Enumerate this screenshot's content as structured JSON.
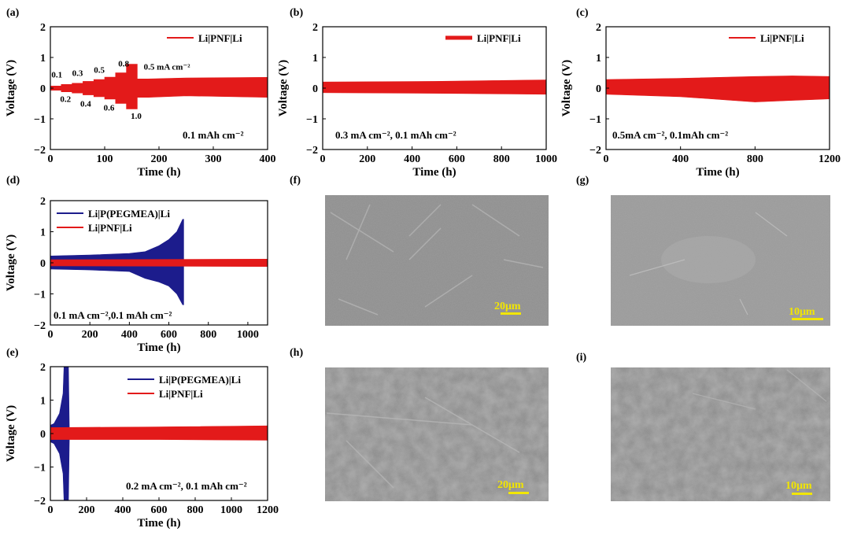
{
  "chart_data": [
    {
      "id": "a",
      "panel_label": "(a)",
      "type": "line",
      "xlabel": "Time (h)",
      "ylabel": "Voltage (V)",
      "xlim": [
        0,
        400
      ],
      "ylim": [
        -2,
        2
      ],
      "xticks": [
        0,
        100,
        200,
        300,
        400
      ],
      "yticks": [
        -2,
        -1,
        0,
        1,
        2
      ],
      "xtick_labels": [
        "0",
        "100",
        "200",
        "300",
        "400"
      ],
      "ytick_labels": [
        "−2",
        "−1",
        "0",
        "1",
        "2"
      ],
      "legend_position": "top-right",
      "series": [
        {
          "name": "Li|PNF|Li",
          "color": "#e31a1a",
          "envelope": {
            "x": [
              0,
              20,
              20,
              40,
              40,
              60,
              60,
              80,
              80,
              100,
              100,
              120,
              120,
              140,
              140,
              160,
              160,
              180,
              180,
              250,
              400
            ],
            "upper": [
              0.07,
              0.07,
              0.12,
              0.12,
              0.16,
              0.16,
              0.22,
              0.22,
              0.28,
              0.28,
              0.36,
              0.36,
              0.5,
              0.5,
              0.78,
              0.78,
              0.3,
              0.3,
              0.3,
              0.33,
              0.35
            ],
            "lower": [
              -0.07,
              -0.07,
              -0.12,
              -0.12,
              -0.16,
              -0.16,
              -0.22,
              -0.22,
              -0.28,
              -0.28,
              -0.36,
              -0.36,
              -0.5,
              -0.5,
              -0.68,
              -0.68,
              -0.3,
              -0.3,
              -0.3,
              -0.25,
              -0.3
            ]
          }
        }
      ],
      "annotations": [
        {
          "text": "0.1",
          "x": 2,
          "y": 0.35
        },
        {
          "text": "0.3",
          "x": 40,
          "y": 0.4
        },
        {
          "text": "0.5",
          "x": 80,
          "y": 0.5
        },
        {
          "text": "0.8",
          "x": 125,
          "y": 0.7
        },
        {
          "text": "0.5 mA cm⁻²",
          "x": 172,
          "y": 0.6
        },
        {
          "text": "0.2",
          "x": 18,
          "y": -0.45
        },
        {
          "text": "0.4",
          "x": 55,
          "y": -0.6
        },
        {
          "text": "0.6",
          "x": 98,
          "y": -0.73
        },
        {
          "text": "1.0",
          "x": 148,
          "y": -1.0
        }
      ],
      "condition": "0.1 mAh cm⁻²"
    },
    {
      "id": "b",
      "panel_label": "(b)",
      "type": "line",
      "xlabel": "Time (h)",
      "ylabel": "Voltage (V)",
      "xlim": [
        0,
        1000
      ],
      "ylim": [
        -2,
        2
      ],
      "xticks": [
        0,
        200,
        400,
        600,
        800,
        1000
      ],
      "yticks": [
        -2,
        -1,
        0,
        1,
        2
      ],
      "xtick_labels": [
        "0",
        "200",
        "400",
        "600",
        "800",
        "1000"
      ],
      "ytick_labels": [
        "−2",
        "−1",
        "0",
        "1",
        "2"
      ],
      "legend_position": "top-right",
      "series": [
        {
          "name": "Li|PNF|Li",
          "color": "#e31a1a",
          "envelope": {
            "x": [
              0,
              500,
              1000
            ],
            "upper": [
              0.2,
              0.22,
              0.27
            ],
            "lower": [
              -0.15,
              -0.17,
              -0.2
            ]
          }
        }
      ],
      "condition": "0.3 mA cm⁻², 0.1 mAh cm⁻²"
    },
    {
      "id": "c",
      "panel_label": "(c)",
      "type": "line",
      "xlabel": "Time (h)",
      "ylabel": "Voltage (V)",
      "xlim": [
        0,
        1200
      ],
      "ylim": [
        -2,
        2
      ],
      "xticks": [
        0,
        400,
        800,
        1200
      ],
      "yticks": [
        -2,
        -1,
        0,
        1,
        2
      ],
      "xtick_labels": [
        "0",
        "400",
        "800",
        "1200"
      ],
      "ytick_labels": [
        "−2",
        "−1",
        "0",
        "1",
        "2"
      ],
      "legend_position": "top-right",
      "series": [
        {
          "name": "Li|PNF|Li",
          "color": "#e31a1a",
          "envelope": {
            "x": [
              0,
              400,
              800,
              1000,
              1200
            ],
            "upper": [
              0.28,
              0.32,
              0.38,
              0.4,
              0.38
            ],
            "lower": [
              -0.2,
              -0.28,
              -0.45,
              -0.4,
              -0.35
            ]
          }
        }
      ],
      "condition": "0.5mA cm⁻², 0.1mAh cm⁻²"
    },
    {
      "id": "d",
      "panel_label": "(d)",
      "type": "line",
      "xlabel": "Time (h)",
      "ylabel": "Voltage (V)",
      "xlim": [
        0,
        1100
      ],
      "ylim": [
        -2,
        2
      ],
      "xticks": [
        0,
        200,
        400,
        600,
        800,
        1000
      ],
      "yticks": [
        -2,
        -1,
        0,
        1,
        2
      ],
      "xtick_labels": [
        "0",
        "200",
        "400",
        "600",
        "800",
        "1000"
      ],
      "ytick_labels": [
        "−2",
        "−1",
        "0",
        "1",
        "2"
      ],
      "legend_position": "top-left",
      "series": [
        {
          "name": "Li|P(PEGMEA)|Li",
          "color": "#1c1c8c",
          "envelope": {
            "x": [
              0,
              200,
              400,
              480,
              550,
              600,
              640,
              670,
              675,
              675
            ],
            "upper": [
              0.22,
              0.25,
              0.3,
              0.36,
              0.55,
              0.75,
              1.0,
              1.4,
              1.4,
              0
            ],
            "lower": [
              -0.2,
              -0.23,
              -0.28,
              -0.5,
              -0.62,
              -0.75,
              -1.0,
              -1.35,
              -1.35,
              0
            ]
          }
        },
        {
          "name": "Li|PNF|Li",
          "color": "#e31a1a",
          "envelope": {
            "x": [
              0,
              1100
            ],
            "upper": [
              0.1,
              0.12
            ],
            "lower": [
              -0.1,
              -0.12
            ]
          }
        }
      ],
      "condition": "0.1 mA cm⁻²,0.1 mAh cm⁻²"
    },
    {
      "id": "e",
      "panel_label": "(e)",
      "type": "line",
      "xlabel": "Time (h)",
      "ylabel": "Voltage (V)",
      "xlim": [
        0,
        1200
      ],
      "ylim": [
        -2,
        2
      ],
      "xticks": [
        0,
        200,
        400,
        600,
        800,
        1000,
        1200
      ],
      "yticks": [
        -2,
        -1,
        0,
        1,
        2
      ],
      "xtick_labels": [
        "0",
        "200",
        "400",
        "600",
        "800",
        "1000",
        "1200"
      ],
      "ytick_labels": [
        "−2",
        "−1",
        "0",
        "1",
        "2"
      ],
      "legend_position": "top-right",
      "series": [
        {
          "name": "Li|P(PEGMEA)|Li",
          "color": "#1c1c8c",
          "envelope": {
            "x": [
              0,
              20,
              50,
              70,
              75,
              100,
              105
            ],
            "upper": [
              0.25,
              0.3,
              0.6,
              1.2,
              2.0,
              2.0,
              0
            ],
            "lower": [
              -0.25,
              -0.3,
              -0.6,
              -1.2,
              -2.0,
              -2.0,
              0
            ]
          }
        },
        {
          "name": "Li|PNF|Li",
          "color": "#e31a1a",
          "envelope": {
            "x": [
              0,
              600,
              1200
            ],
            "upper": [
              0.18,
              0.2,
              0.23
            ],
            "lower": [
              -0.18,
              -0.18,
              -0.2
            ]
          }
        }
      ],
      "condition": "0.2 mA cm⁻², 0.1 mAh cm⁻²"
    }
  ],
  "images": [
    {
      "id": "f",
      "panel_label": "(f)",
      "scale_bar": "20μm"
    },
    {
      "id": "g",
      "panel_label": "(g)",
      "scale_bar": "10μm"
    },
    {
      "id": "h",
      "panel_label": "(h)",
      "scale_bar": "20μm"
    },
    {
      "id": "i",
      "panel_label": "(i)",
      "scale_bar": "10μm"
    }
  ]
}
